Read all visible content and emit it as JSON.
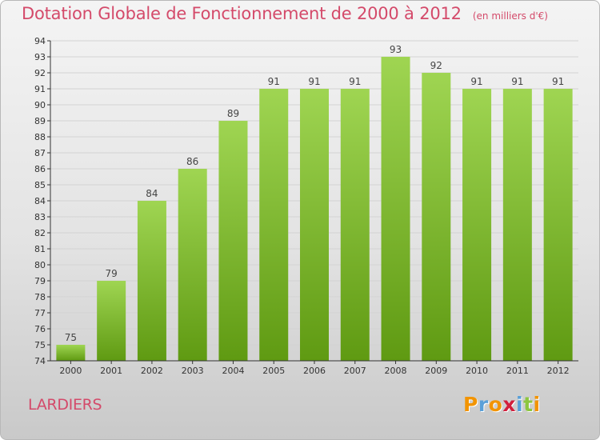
{
  "header": {
    "title": "Dotation Globale de Fonctionnement de 2000 à 2012",
    "unit": "(en milliers d'€)"
  },
  "footer": {
    "commune": "LARDIERS",
    "logo_text": "Proxiti",
    "logo_colors": [
      "#f29400",
      "#5aa0d8",
      "#f29400",
      "#d21f3c",
      "#5aa0d8",
      "#8dc63f",
      "#f29400"
    ]
  },
  "colors": {
    "title": "#d44a6a",
    "bar_top": "#9fd552",
    "bar_bottom": "#5f9a12",
    "axis": "#333333"
  },
  "chart_data": {
    "type": "bar",
    "title": "Dotation Globale de Fonctionnement de 2000 à 2012",
    "xlabel": "",
    "ylabel": "",
    "categories": [
      "2000",
      "2001",
      "2002",
      "2003",
      "2004",
      "2005",
      "2006",
      "2007",
      "2008",
      "2009",
      "2010",
      "2011",
      "2012"
    ],
    "values": [
      75,
      79,
      84,
      86,
      89,
      91,
      91,
      91,
      93,
      92,
      91,
      91,
      91
    ],
    "ylim": [
      74,
      94
    ],
    "yticks": [
      74,
      75,
      76,
      77,
      78,
      79,
      80,
      81,
      82,
      83,
      84,
      85,
      86,
      87,
      88,
      89,
      90,
      91,
      92,
      93,
      94
    ],
    "grid": true,
    "data_labels": true
  }
}
